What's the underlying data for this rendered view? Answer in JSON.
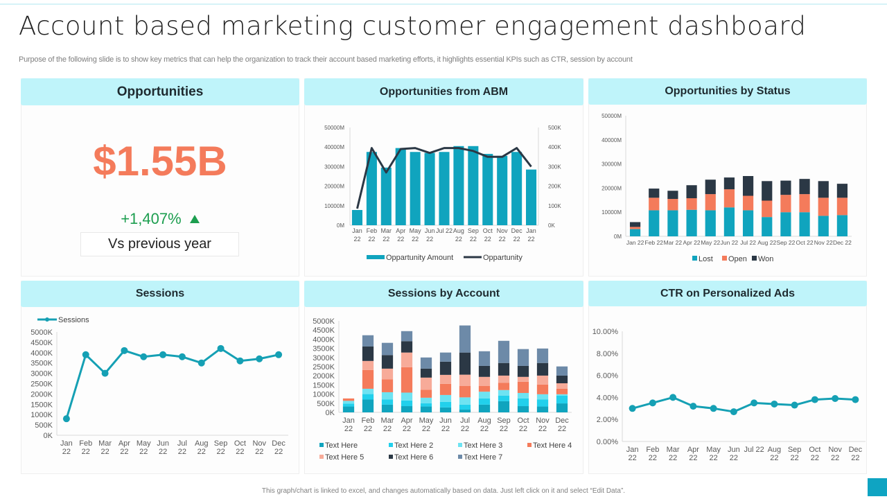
{
  "header": {
    "title": "Account based marketing customer engagement dashboard",
    "subtitle": "Purpose of the following slide is to show key metrics that can help the organization to track their account based marketing efforts, it highlights essential KPIs such as CTR, session by account"
  },
  "footer": {
    "note": "This graph/chart is linked to excel, and changes automatically based on data. Just left click on it and select “Edit Data”."
  },
  "colors": {
    "header_bg": "#bff4fa",
    "accent_teal": "#10a4be",
    "dark_navy": "#2b3845",
    "orange": "#f47b5b",
    "green": "#1c9e4f"
  },
  "panels": {
    "opportunities": {
      "title": "Opportunities",
      "value": "$1.55B",
      "change": "+1,407%",
      "change_icon": "triangle-up-icon",
      "comparison": "Vs previous year"
    },
    "opportunities_from_abm": {
      "title": "Opportunities from ABM"
    },
    "opportunities_by_status": {
      "title": "Opportunities by Status"
    },
    "sessions": {
      "title": "Sessions"
    },
    "sessions_by_account": {
      "title": "Sessions by Account"
    },
    "ctr": {
      "title": "CTR on Personalized Ads"
    }
  },
  "chart_data": [
    {
      "id": "abm",
      "type": "bar",
      "title": "Opportunities from ABM",
      "categories": [
        "Jan 22",
        "Feb 22",
        "Mar 22",
        "Apr 22",
        "May 22",
        "Jun 22",
        "Jul 22",
        "Aug 22",
        "Sep 22",
        "Oct 22",
        "Nov 22",
        "Dec 22",
        "Jan 22"
      ],
      "series": [
        {
          "name": "Oppartunity Amount",
          "type": "bar",
          "axis": "left",
          "color": "#10a4be",
          "values": [
            7800,
            37500,
            29500,
            39500,
            37500,
            37000,
            37500,
            40500,
            40500,
            36500,
            35500,
            37500,
            28500
          ]
        },
        {
          "name": "Oppartunity",
          "type": "line",
          "axis": "right",
          "color": "#2b3845",
          "values": [
            85,
            395,
            270,
            390,
            395,
            370,
            395,
            395,
            380,
            350,
            350,
            395,
            300
          ]
        }
      ],
      "yleft": {
        "ticks": [
          "0M",
          "10000M",
          "20000M",
          "30000M",
          "40000M",
          "50000M"
        ],
        "range": [
          0,
          50000
        ]
      },
      "yright": {
        "ticks": [
          "0K",
          "100K",
          "200K",
          "300K",
          "400K",
          "500K"
        ],
        "range": [
          0,
          500
        ]
      },
      "legend": "bottom",
      "grid": false
    },
    {
      "id": "status",
      "type": "bar",
      "stacked": true,
      "title": "Opportunities by Status",
      "categories": [
        "Jan 22",
        "Feb 22",
        "Mar 22",
        "Apr 22",
        "May 22",
        "Jun 22",
        "Jul 22",
        "Aug 22",
        "Sep 22",
        "Oct 22",
        "Nov 22",
        "Dec 22"
      ],
      "series": [
        {
          "name": "Lost",
          "color": "#10a4be",
          "values": [
            3000,
            10800,
            10800,
            11000,
            10800,
            12000,
            10800,
            8000,
            10000,
            10000,
            8500,
            8800
          ]
        },
        {
          "name": "Open",
          "color": "#f47b5b",
          "values": [
            900,
            5200,
            4700,
            4800,
            6700,
            7500,
            6000,
            6800,
            7200,
            7500,
            7500,
            7200
          ]
        },
        {
          "name": "Won",
          "color": "#2b3845",
          "values": [
            2000,
            3800,
            3400,
            5400,
            6000,
            4900,
            8200,
            8100,
            5900,
            6300,
            6900,
            5800
          ]
        }
      ],
      "yaxis": {
        "ticks": [
          "0M",
          "10000M",
          "20000M",
          "30000M",
          "40000M",
          "50000M"
        ],
        "range": [
          0,
          50000
        ]
      },
      "legend": "bottom",
      "grid": false
    },
    {
      "id": "sessions",
      "type": "line",
      "title": "Sessions",
      "categories": [
        "Jan 22",
        "Feb 22",
        "Mar 22",
        "Apr 22",
        "May 22",
        "Jun 22",
        "Jul 22",
        "Aug 22",
        "Sep 22",
        "Oct 22",
        "Nov 22",
        "Dec 22"
      ],
      "series": [
        {
          "name": "Sessions",
          "color": "#15a0b4",
          "values": [
            800,
            3900,
            3000,
            4100,
            3800,
            3900,
            3800,
            3500,
            4200,
            3600,
            3700,
            3900
          ]
        }
      ],
      "yaxis": {
        "ticks": [
          "0K",
          "500K",
          "1000K",
          "1500K",
          "2000K",
          "2500K",
          "3000K",
          "3500K",
          "4000K",
          "4500K",
          "5000K"
        ],
        "range": [
          0,
          5000
        ]
      },
      "legend": "top-left",
      "grid": false
    },
    {
      "id": "sessions_account",
      "type": "bar",
      "stacked": true,
      "title": "Sessions by Account",
      "categories": [
        "Jan 22",
        "Feb 22",
        "Mar 22",
        "Apr 22",
        "May 22",
        "Jun 22",
        "Jul 22",
        "Aug 22",
        "Sep 22",
        "Oct 22",
        "Nov 22",
        "Dec 22"
      ],
      "series": [
        {
          "name": "Text Here",
          "color": "#10a4be",
          "values": [
            320,
            700,
            420,
            340,
            320,
            270,
            150,
            420,
            610,
            340,
            320,
            490
          ]
        },
        {
          "name": "Text Here 2",
          "color": "#22d0ec",
          "values": [
            160,
            300,
            280,
            310,
            180,
            300,
            270,
            340,
            310,
            420,
            380,
            420
          ]
        },
        {
          "name": "Text Here 3",
          "color": "#6ee3f2",
          "values": [
            150,
            290,
            400,
            430,
            300,
            380,
            400,
            370,
            300,
            300,
            290,
            80
          ]
        },
        {
          "name": "Text Here 4",
          "color": "#f47b5b",
          "values": [
            130,
            1030,
            700,
            1390,
            430,
            610,
            620,
            310,
            390,
            610,
            530,
            300
          ]
        },
        {
          "name": "Text Here 5",
          "color": "#f7ab99",
          "values": [
            0,
            490,
            590,
            800,
            670,
            490,
            620,
            500,
            400,
            270,
            490,
            300
          ]
        },
        {
          "name": "Text Here 6",
          "color": "#2b3845",
          "values": [
            0,
            790,
            740,
            620,
            490,
            720,
            1210,
            600,
            690,
            600,
            690,
            420
          ]
        },
        {
          "name": "Text Here 7",
          "color": "#6d8aa8",
          "values": [
            0,
            615,
            670,
            550,
            610,
            500,
            1480,
            800,
            1210,
            920,
            790,
            500
          ]
        }
      ],
      "yaxis": {
        "ticks": [
          "0K",
          "500K",
          "1000K",
          "1500K",
          "2000K",
          "2500K",
          "3000K",
          "3500K",
          "4000K",
          "4500K",
          "5000K"
        ],
        "range": [
          0,
          5000
        ]
      },
      "legend": "bottom",
      "grid": false
    },
    {
      "id": "ctr",
      "type": "line",
      "title": "CTR on Personalized Ads",
      "categories": [
        "Jan 22",
        "Feb 22",
        "Mar 22",
        "Apr 22",
        "May 22",
        "Jun 22",
        "Jul 22",
        "Aug 22",
        "Sep 22",
        "Oct 22",
        "Nov 22",
        "Dec 22"
      ],
      "series": [
        {
          "name": "CTR",
          "color": "#15a0b4",
          "values": [
            3.0,
            3.5,
            4.0,
            3.2,
            3.0,
            2.7,
            3.5,
            3.4,
            3.3,
            3.8,
            3.9,
            3.8
          ]
        }
      ],
      "yaxis": {
        "ticks": [
          "0.00%",
          "2.00%",
          "4.00%",
          "6.00%",
          "8.00%",
          "10.00%"
        ],
        "range": [
          0,
          10
        ]
      },
      "legend": "none",
      "grid": false
    }
  ]
}
